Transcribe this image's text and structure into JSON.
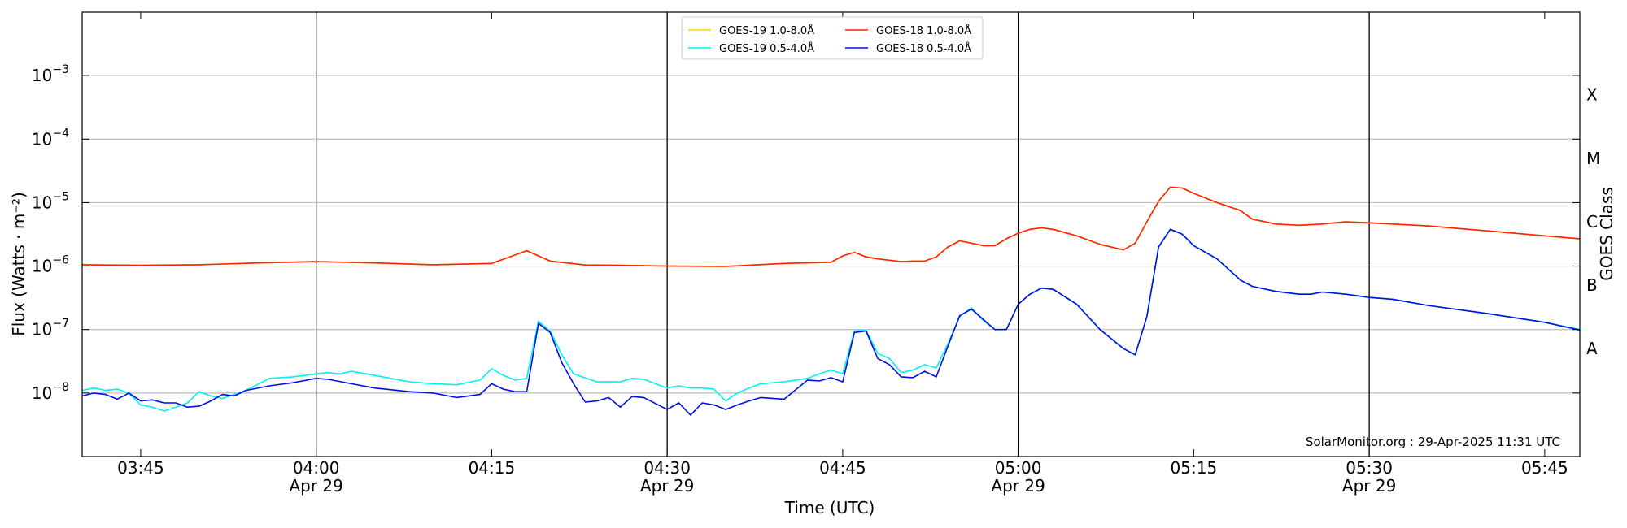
{
  "chart_data": {
    "type": "line",
    "xlabel": "Time (UTC)",
    "ylabel": "Flux (Watts · m⁻²)",
    "right_label": "GOES Class",
    "watermark": "SolarMonitor.org : 29-Apr-2025 11:31 UTC",
    "x_range": [
      "03:40",
      "05:48"
    ],
    "x_ticks": [
      {
        "t": "03:45",
        "label": "03:45",
        "sub": ""
      },
      {
        "t": "04:00",
        "label": "04:00",
        "sub": "Apr 29"
      },
      {
        "t": "04:15",
        "label": "04:15",
        "sub": ""
      },
      {
        "t": "04:30",
        "label": "04:30",
        "sub": "Apr 29"
      },
      {
        "t": "04:45",
        "label": "04:45",
        "sub": ""
      },
      {
        "t": "05:00",
        "label": "05:00",
        "sub": "Apr 29"
      },
      {
        "t": "05:15",
        "label": "05:15",
        "sub": ""
      },
      {
        "t": "05:30",
        "label": "05:30",
        "sub": "Apr 29"
      },
      {
        "t": "05:45",
        "label": "05:45",
        "sub": ""
      }
    ],
    "vlines": [
      "04:00",
      "04:30",
      "05:00",
      "05:30"
    ],
    "y_scale": "log",
    "y_range": [
      1e-09,
      0.01
    ],
    "y_ticks": [
      {
        "exp": -8,
        "label": "10",
        "sup": "−8"
      },
      {
        "exp": -7,
        "label": "10",
        "sup": "−7"
      },
      {
        "exp": -6,
        "label": "10",
        "sup": "−6"
      },
      {
        "exp": -5,
        "label": "10",
        "sup": "−5"
      },
      {
        "exp": -4,
        "label": "10",
        "sup": "−4"
      },
      {
        "exp": -3,
        "label": "10",
        "sup": "−3"
      }
    ],
    "goes_classes": [
      {
        "label": "A",
        "value": 5e-08
      },
      {
        "label": "B",
        "value": 5e-07
      },
      {
        "label": "C",
        "value": 5e-06
      },
      {
        "label": "M",
        "value": 5e-05
      },
      {
        "label": "X",
        "value": 0.0005
      }
    ],
    "legend_position": "top-center",
    "legend": [
      {
        "name": "GOES-19 1.0-8.0Å",
        "color": "#f5d800"
      },
      {
        "name": "GOES-19 0.5-4.0Å",
        "color": "#00f0f0"
      },
      {
        "name": "GOES-18 1.0-8.0Å",
        "color": "#ff2200"
      },
      {
        "name": "GOES-18 0.5-4.0Å",
        "color": "#0010e0"
      }
    ],
    "series": [
      {
        "name": "GOES-19 1.0-8.0Å",
        "color": "#f5d800",
        "x": [
          "03:40",
          "03:45",
          "03:50",
          "03:55",
          "04:00",
          "04:05",
          "04:10",
          "04:15",
          "04:18",
          "04:20",
          "04:23",
          "04:26",
          "04:30",
          "04:35",
          "04:40",
          "04:44",
          "04:45",
          "04:46",
          "04:47",
          "04:48",
          "04:50",
          "04:51",
          "04:52",
          "04:53",
          "04:54",
          "04:55",
          "04:56",
          "04:57",
          "04:58",
          "04:59",
          "05:00",
          "05:01",
          "05:02",
          "05:03",
          "05:05",
          "05:07",
          "05:09",
          "05:10",
          "05:11",
          "05:12",
          "05:13",
          "05:14",
          "05:15",
          "05:17",
          "05:19",
          "05:20",
          "05:22",
          "05:24",
          "05:26",
          "05:28",
          "05:30",
          "05:35",
          "05:40",
          "05:45",
          "05:48"
        ],
        "values": [
          1.05e-06,
          1.03e-06,
          1.05e-06,
          1.12e-06,
          1.18e-06,
          1.12e-06,
          1.05e-06,
          1.1e-06,
          1.75e-06,
          1.2e-06,
          1.04e-06,
          1.03e-06,
          1e-06,
          9.9e-07,
          1.1e-06,
          1.15e-06,
          1.45e-06,
          1.65e-06,
          1.4e-06,
          1.3e-06,
          1.18e-06,
          1.2e-06,
          1.2e-06,
          1.4e-06,
          2e-06,
          2.5e-06,
          2.3e-06,
          2.1e-06,
          2.1e-06,
          2.7e-06,
          3.3e-06,
          3.8e-06,
          4e-06,
          3.8e-06,
          3e-06,
          2.2e-06,
          1.8e-06,
          2.3e-06,
          5e-06,
          1.05e-05,
          1.75e-05,
          1.7e-05,
          1.4e-05,
          1e-05,
          7.5e-06,
          5.5e-06,
          4.6e-06,
          4.4e-06,
          4.6e-06,
          5e-06,
          4.8e-06,
          4.3e-06,
          3.6e-06,
          3e-06,
          2.7e-06
        ]
      },
      {
        "name": "GOES-19 0.5-4.0Å",
        "color": "#00f0f0",
        "x": [
          "03:40",
          "03:41",
          "03:42",
          "03:43",
          "03:44",
          "03:45",
          "03:46",
          "03:47",
          "03:48",
          "03:49",
          "03:50",
          "03:51",
          "03:52",
          "03:53",
          "03:54",
          "03:56",
          "03:58",
          "04:00",
          "04:01",
          "04:02",
          "04:03",
          "04:05",
          "04:08",
          "04:10",
          "04:12",
          "04:14",
          "04:15",
          "04:16",
          "04:17",
          "04:18",
          "04:19",
          "04:20",
          "04:21",
          "04:22",
          "04:24",
          "04:26",
          "04:27",
          "04:28",
          "04:29",
          "04:30",
          "04:31",
          "04:32",
          "04:33",
          "04:34",
          "04:35",
          "04:36",
          "04:37",
          "04:38",
          "04:40",
          "04:42",
          "04:43",
          "04:44",
          "04:45",
          "04:46",
          "04:47",
          "04:48",
          "04:49",
          "04:50",
          "04:51",
          "04:52",
          "04:53",
          "04:54",
          "04:55",
          "04:56",
          "04:57",
          "04:58",
          "04:59",
          "05:00",
          "05:01",
          "05:02",
          "05:03",
          "05:05",
          "05:07",
          "05:09",
          "05:10",
          "05:11",
          "05:12",
          "05:13",
          "05:14",
          "05:15",
          "05:17",
          "05:19",
          "05:20",
          "05:22",
          "05:24",
          "05:25",
          "05:26",
          "05:28",
          "05:30",
          "05:32",
          "05:35",
          "05:40",
          "05:45",
          "05:48"
        ],
        "values": [
          1.1e-08,
          1.2e-08,
          1.1e-08,
          1.15e-08,
          1e-08,
          6.5e-09,
          6e-09,
          5.2e-09,
          6e-09,
          7e-09,
          1.05e-08,
          9e-09,
          8.2e-09,
          9.5e-09,
          1.1e-08,
          1.7e-08,
          1.8e-08,
          2e-08,
          2.1e-08,
          2e-08,
          2.2e-08,
          1.9e-08,
          1.5e-08,
          1.4e-08,
          1.35e-08,
          1.6e-08,
          2.4e-08,
          1.9e-08,
          1.6e-08,
          1.7e-08,
          1.35e-07,
          9.5e-08,
          4e-08,
          2e-08,
          1.5e-08,
          1.5e-08,
          1.7e-08,
          1.65e-08,
          1.4e-08,
          1.2e-08,
          1.3e-08,
          1.2e-08,
          1.2e-08,
          1.15e-08,
          7.5e-09,
          1e-08,
          1.2e-08,
          1.4e-08,
          1.5e-08,
          1.7e-08,
          2e-08,
          2.3e-08,
          2e-08,
          9.5e-08,
          9.8e-08,
          4.2e-08,
          3.5e-08,
          2.1e-08,
          2.3e-08,
          2.8e-08,
          2.5e-08,
          6e-08,
          1.6e-07,
          2.2e-07,
          1.4e-07,
          1e-07,
          1e-07,
          2.5e-07,
          3.6e-07,
          4.5e-07,
          4.3e-07,
          2.5e-07,
          1e-07,
          5e-08,
          4e-08,
          1.6e-07,
          2e-06,
          3.8e-06,
          3.2e-06,
          2.1e-06,
          1.3e-06,
          6e-07,
          4.8e-07,
          4e-07,
          3.6e-07,
          3.6e-07,
          3.9e-07,
          3.6e-07,
          3.2e-07,
          3e-07,
          2.4e-07,
          1.8e-07,
          1.3e-07,
          1e-07
        ]
      },
      {
        "name": "GOES-18 1.0-8.0Å",
        "color": "#ff2200",
        "x": [
          "03:40",
          "03:45",
          "03:50",
          "03:55",
          "04:00",
          "04:05",
          "04:10",
          "04:15",
          "04:18",
          "04:20",
          "04:23",
          "04:26",
          "04:30",
          "04:35",
          "04:40",
          "04:44",
          "04:45",
          "04:46",
          "04:47",
          "04:48",
          "04:50",
          "04:51",
          "04:52",
          "04:53",
          "04:54",
          "04:55",
          "04:56",
          "04:57",
          "04:58",
          "04:59",
          "05:00",
          "05:01",
          "05:02",
          "05:03",
          "05:05",
          "05:07",
          "05:09",
          "05:10",
          "05:11",
          "05:12",
          "05:13",
          "05:14",
          "05:15",
          "05:17",
          "05:19",
          "05:20",
          "05:22",
          "05:24",
          "05:26",
          "05:28",
          "05:30",
          "05:35",
          "05:40",
          "05:45",
          "05:48"
        ],
        "values": [
          1.05e-06,
          1.03e-06,
          1.05e-06,
          1.12e-06,
          1.18e-06,
          1.12e-06,
          1.05e-06,
          1.1e-06,
          1.75e-06,
          1.2e-06,
          1.04e-06,
          1.03e-06,
          1e-06,
          9.9e-07,
          1.1e-06,
          1.15e-06,
          1.45e-06,
          1.65e-06,
          1.4e-06,
          1.3e-06,
          1.18e-06,
          1.2e-06,
          1.2e-06,
          1.4e-06,
          2e-06,
          2.5e-06,
          2.3e-06,
          2.1e-06,
          2.1e-06,
          2.7e-06,
          3.3e-06,
          3.8e-06,
          4e-06,
          3.8e-06,
          3e-06,
          2.2e-06,
          1.8e-06,
          2.3e-06,
          5e-06,
          1.05e-05,
          1.75e-05,
          1.7e-05,
          1.4e-05,
          1e-05,
          7.5e-06,
          5.5e-06,
          4.6e-06,
          4.4e-06,
          4.6e-06,
          5e-06,
          4.8e-06,
          4.3e-06,
          3.6e-06,
          3e-06,
          2.7e-06
        ]
      },
      {
        "name": "GOES-18 0.5-4.0Å",
        "color": "#0010e0",
        "x": [
          "03:40",
          "03:41",
          "03:42",
          "03:43",
          "03:44",
          "03:45",
          "03:46",
          "03:47",
          "03:48",
          "03:49",
          "03:50",
          "03:51",
          "03:52",
          "03:53",
          "03:54",
          "03:56",
          "03:58",
          "04:00",
          "04:01",
          "04:03",
          "04:05",
          "04:08",
          "04:10",
          "04:12",
          "04:14",
          "04:15",
          "04:16",
          "04:17",
          "04:18",
          "04:19",
          "04:20",
          "04:21",
          "04:22",
          "04:23",
          "04:24",
          "04:25",
          "04:26",
          "04:27",
          "04:28",
          "04:30",
          "04:31",
          "04:32",
          "04:33",
          "04:34",
          "04:35",
          "04:36",
          "04:37",
          "04:38",
          "04:40",
          "04:42",
          "04:43",
          "04:44",
          "04:45",
          "04:46",
          "04:47",
          "04:48",
          "04:49",
          "04:50",
          "04:51",
          "04:52",
          "04:53",
          "04:54",
          "04:55",
          "04:56",
          "04:57",
          "04:58",
          "04:59",
          "05:00",
          "05:01",
          "05:02",
          "05:03",
          "05:05",
          "05:07",
          "05:09",
          "05:10",
          "05:11",
          "05:12",
          "05:13",
          "05:14",
          "05:15",
          "05:17",
          "05:19",
          "05:20",
          "05:22",
          "05:24",
          "05:25",
          "05:26",
          "05:28",
          "05:30",
          "05:32",
          "05:35",
          "05:40",
          "05:45",
          "05:48"
        ],
        "values": [
          9e-09,
          1e-08,
          9.5e-09,
          8e-09,
          1e-08,
          7.5e-09,
          7.8e-09,
          7e-09,
          7e-09,
          6e-09,
          6.2e-09,
          7.5e-09,
          9.5e-09,
          9e-09,
          1.1e-08,
          1.3e-08,
          1.45e-08,
          1.7e-08,
          1.65e-08,
          1.4e-08,
          1.2e-08,
          1.05e-08,
          1e-08,
          8.5e-09,
          9.5e-09,
          1.4e-08,
          1.15e-08,
          1.05e-08,
          1.05e-08,
          1.25e-07,
          9e-08,
          3e-08,
          1.4e-08,
          7.2e-09,
          7.5e-09,
          8.5e-09,
          6e-09,
          8.8e-09,
          8.5e-09,
          5.5e-09,
          7e-09,
          4.5e-09,
          7e-09,
          6.5e-09,
          5.5e-09,
          6.5e-09,
          7.5e-09,
          8.5e-09,
          8e-09,
          1.6e-08,
          1.55e-08,
          1.75e-08,
          1.5e-08,
          9e-08,
          9.5e-08,
          3.5e-08,
          2.8e-08,
          1.8e-08,
          1.75e-08,
          2.2e-08,
          1.8e-08,
          5.5e-08,
          1.65e-07,
          2.1e-07,
          1.45e-07,
          1e-07,
          1e-07,
          2.5e-07,
          3.6e-07,
          4.5e-07,
          4.3e-07,
          2.5e-07,
          1e-07,
          5e-08,
          4e-08,
          1.6e-07,
          2e-06,
          3.8e-06,
          3.2e-06,
          2.1e-06,
          1.3e-06,
          6e-07,
          4.8e-07,
          4e-07,
          3.6e-07,
          3.6e-07,
          3.9e-07,
          3.6e-07,
          3.2e-07,
          3e-07,
          2.4e-07,
          1.8e-07,
          1.3e-07,
          9.8e-08
        ]
      }
    ]
  }
}
